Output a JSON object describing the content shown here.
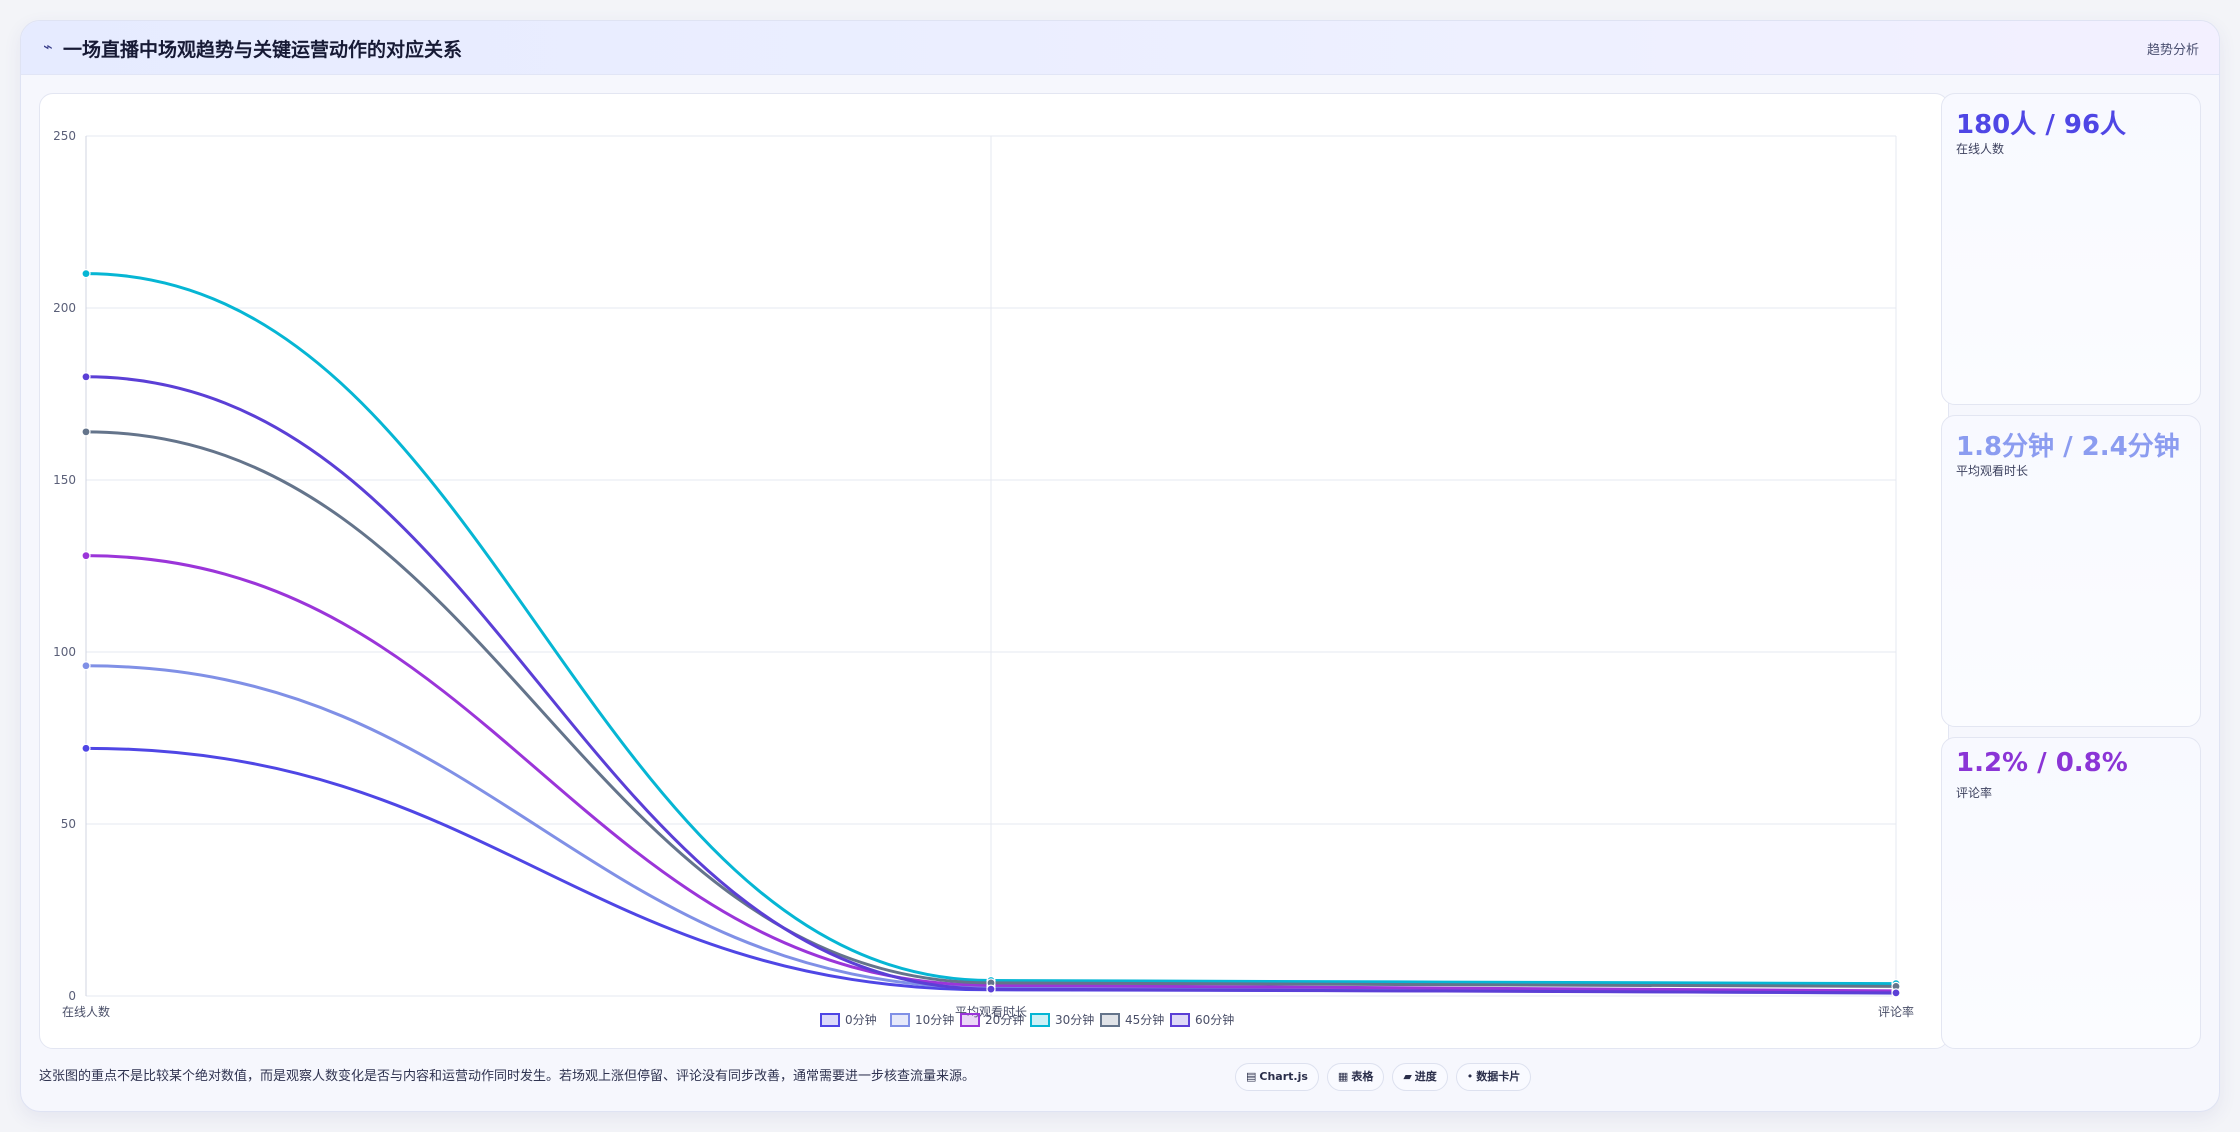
{
  "header": {
    "icon": "trend-line-icon",
    "icon_glyph": "⌁",
    "title": "一场直播中场观趋势与关键运营动作的对应关系",
    "tag": "趋势分析"
  },
  "kpis": [
    {
      "value": "180人 / 96人",
      "label": "在线人数",
      "color": "#4f46e5"
    },
    {
      "value": "1.8分钟 / 2.4分钟",
      "label": "平均观看时长",
      "color": "#8b9cf0"
    },
    {
      "value": "1.2% / 0.8%",
      "label": "评论率",
      "color": "#8b35d6"
    }
  ],
  "footer": {
    "note": "这张图的重点不是比较某个绝对数值，而是观察人数变化是否与内容和运营动作同时发生。若场观上涨但停留、评论没有同步改善，通常需要进一步核查流量来源。",
    "pills": [
      {
        "icon": "chart-icon",
        "glyph": "▤",
        "label": "Chart.js"
      },
      {
        "icon": "table-icon",
        "glyph": "▦",
        "label": "表格"
      },
      {
        "icon": "progress-icon",
        "glyph": "▰",
        "label": "进度"
      },
      {
        "icon": "card-icon",
        "glyph": "•",
        "label": "数据卡片"
      }
    ]
  },
  "chart_data": {
    "type": "line",
    "categories": [
      "在线人数",
      "平均观看时长",
      "评论率"
    ],
    "ylim": [
      0,
      250
    ],
    "yticks": [
      0,
      50,
      100,
      150,
      200,
      250
    ],
    "grid": true,
    "legend_position": "bottom",
    "series": [
      {
        "name": "0分钟",
        "color": "#4f46e5",
        "values": [
          72,
          1.8,
          1.2
        ]
      },
      {
        "name": "10分钟",
        "color": "#8090e6",
        "values": [
          96,
          2.4,
          0.8
        ]
      },
      {
        "name": "20分钟",
        "color": "#9b35d9",
        "values": [
          128,
          3.1,
          1.5
        ]
      },
      {
        "name": "30分钟",
        "color": "#06b6d4",
        "values": [
          210,
          4.5,
          3.6
        ]
      },
      {
        "name": "45分钟",
        "color": "#64748b",
        "values": [
          164,
          3.8,
          2.8
        ]
      },
      {
        "name": "60分钟",
        "color": "#5b3fd6",
        "values": [
          180,
          2.0,
          0.9
        ]
      }
    ]
  }
}
